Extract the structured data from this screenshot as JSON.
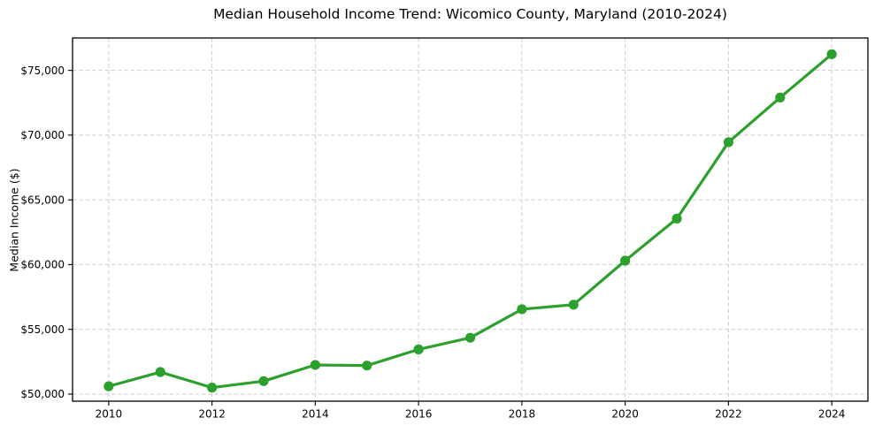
{
  "figure": {
    "background": "#ffffff"
  },
  "chart_data": {
    "type": "line",
    "title": "Median Household Income Trend: Wicomico County, Maryland (2010-2024)",
    "xlabel": "",
    "ylabel": "Median Income ($)",
    "x": [
      2010,
      2011,
      2012,
      2013,
      2014,
      2015,
      2016,
      2017,
      2018,
      2019,
      2020,
      2021,
      2022,
      2023,
      2024
    ],
    "values": [
      50600,
      51700,
      50500,
      51000,
      52250,
      52200,
      53450,
      54350,
      56550,
      56900,
      60300,
      63550,
      69450,
      72900,
      76250
    ],
    "x_ticks": [
      2010,
      2012,
      2014,
      2016,
      2018,
      2020,
      2022,
      2024
    ],
    "x_tick_labels": [
      "2010",
      "2012",
      "2014",
      "2016",
      "2018",
      "2020",
      "2022",
      "2024"
    ],
    "y_ticks": [
      50000,
      55000,
      60000,
      65000,
      70000,
      75000
    ],
    "y_tick_labels": [
      "$50,000",
      "$55,000",
      "$60,000",
      "$65,000",
      "$70,000",
      "$75,000"
    ],
    "xlim": [
      2009.3,
      2024.7
    ],
    "ylim": [
      49450,
      77500
    ],
    "grid": true,
    "grid_style": "dashed",
    "grid_color": "#cdcdcd",
    "line_color": "#2ca02c",
    "marker": "circle",
    "marker_size": 5.6,
    "line_width": 3.2,
    "frame_color": "#000000",
    "legend": "none"
  }
}
